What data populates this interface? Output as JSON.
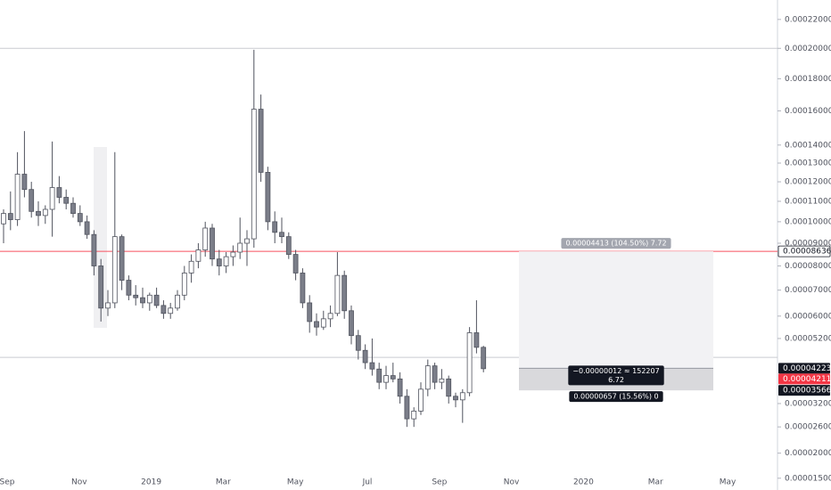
{
  "chart_data": {
    "type": "candlestick",
    "yscale": "sqrt",
    "ylim": [
      1.29e-05,
      0.000234
    ],
    "yticks": [
      {
        "value": 0.00022,
        "label": "0.00022000"
      },
      {
        "value": 0.0002,
        "label": "0.00020000"
      },
      {
        "value": 0.00018,
        "label": "0.00018000"
      },
      {
        "value": 0.00016,
        "label": "0.00016000"
      },
      {
        "value": 0.00014,
        "label": "0.00014000"
      },
      {
        "value": 0.00013,
        "label": "0.00013000"
      },
      {
        "value": 0.00012,
        "label": "0.00012000"
      },
      {
        "value": 0.00011,
        "label": "0.00011000"
      },
      {
        "value": 0.0001,
        "label": "0.00010000"
      },
      {
        "value": 9e-05,
        "label": "0.00009000"
      },
      {
        "value": 8e-05,
        "label": "0.00008000"
      },
      {
        "value": 7e-05,
        "label": "0.00007000"
      },
      {
        "value": 6e-05,
        "label": "0.00006000"
      },
      {
        "value": 5.2e-05,
        "label": "0.00005200"
      },
      {
        "value": 3.2e-05,
        "label": "0.00003200"
      },
      {
        "value": 2.6e-05,
        "label": "0.00002600"
      },
      {
        "value": 2e-05,
        "label": "0.00002000"
      },
      {
        "value": 1.5e-05,
        "label": "0.00001500"
      }
    ],
    "x_labels": [
      "Sep",
      "Nov",
      "2019",
      "Mar",
      "May",
      "Jul",
      "Sep",
      "Nov",
      "2020",
      "Mar",
      "May"
    ],
    "open": [
      9.9e-05,
      0.000104,
      0.000101,
      0.000124,
      0.000116,
      0.000105,
      0.000103,
      0.000106,
      0.000117,
      0.000112,
      0.000109,
      0.000104,
      0.0001,
      9.4e-05,
      8e-05,
      6.3e-05,
      6.5e-05,
      9.3e-05,
      7.4e-05,
      6.8e-05,
      6.7e-05,
      6.5e-05,
      6.8e-05,
      6.4e-05,
      6.1e-05,
      6.3e-05,
      6.8e-05,
      7.7e-05,
      8.2e-05,
      8.7e-05,
      9.7e-05,
      8.3e-05,
      8e-05,
      8.4e-05,
      8.6e-05,
      9e-05,
      9.2e-05,
      0.000161,
      0.000125,
      0.0001,
      9.5e-05,
      9.3e-05,
      8.5e-05,
      7.7e-05,
      6.5e-05,
      5.8e-05,
      5.6e-05,
      5.9e-05,
      6.1e-05,
      7.6e-05,
      6.2e-05,
      5.3e-05,
      4.8e-05,
      4.4e-05,
      4.2e-05,
      3.8e-05,
      4e-05,
      3.9e-05,
      3.4e-05,
      2.8e-05,
      3e-05,
      3.6e-05,
      4.3e-05,
      3.8e-05,
      3.9e-05,
      3.4e-05,
      3.3e-05,
      3.5e-05,
      5.4e-05,
      4.9e-05
    ],
    "high": [
      0.000106,
      0.000115,
      0.000136,
      0.000148,
      0.00012,
      0.00011,
      0.000108,
      0.000142,
      0.000123,
      0.000116,
      0.000112,
      0.000108,
      0.000103,
      9.6e-05,
      8.3e-05,
      7e-05,
      0.000136,
      9.4e-05,
      7.6e-05,
      7.2e-05,
      7.1e-05,
      6.9e-05,
      7.1e-05,
      6.6e-05,
      6.5e-05,
      7e-05,
      8e-05,
      8.5e-05,
      9e-05,
      0.0001,
      9.9e-05,
      8.7e-05,
      8.6e-05,
      8.9e-05,
      0.000102,
      9.6e-05,
      0.000199,
      0.00017,
      0.000128,
      0.000105,
      0.000102,
      9.5e-05,
      8.7e-05,
      7.9e-05,
      6.8e-05,
      6.1e-05,
      6.2e-05,
      6.4e-05,
      8.6e-05,
      7.8e-05,
      6.4e-05,
      5.5e-05,
      5e-05,
      5.2e-05,
      4.4e-05,
      4.3e-05,
      4.4e-05,
      4.1e-05,
      3.6e-05,
      3.1e-05,
      3.8e-05,
      4.5e-05,
      4.4e-05,
      4.2e-05,
      4e-05,
      3.5e-05,
      3.6e-05,
      5.6e-05,
      6.6e-05,
      4.95e-05
    ],
    "low": [
      9e-05,
      9.6e-05,
      9.8e-05,
      0.000112,
      0.000102,
      9.8e-05,
      9.9e-05,
      9.3e-05,
      0.000109,
      0.000106,
      0.000102,
      9.8e-05,
      9.2e-05,
      7.6e-05,
      5.8e-05,
      6e-05,
      6.3e-05,
      7e-05,
      6.6e-05,
      6.4e-05,
      6.3e-05,
      6.2e-05,
      6.3e-05,
      5.9e-05,
      5.9e-05,
      6.2e-05,
      6.6e-05,
      7.3e-05,
      7.9e-05,
      8.4e-05,
      8e-05,
      7.6e-05,
      7.7e-05,
      8e-05,
      8.3e-05,
      8e-05,
      8.8e-05,
      0.00012,
      9.6e-05,
      9e-05,
      9e-05,
      8.3e-05,
      7.4e-05,
      6.3e-05,
      5.4e-05,
      5.3e-05,
      5.5e-05,
      5.6e-05,
      6e-05,
      5.9e-05,
      5e-05,
      4.5e-05,
      4.2e-05,
      4e-05,
      3.6e-05,
      3.6e-05,
      3.8e-05,
      3.2e-05,
      2.6e-05,
      2.6e-05,
      2.9e-05,
      3.4e-05,
      3.6e-05,
      3.6e-05,
      3.2e-05,
      3.1e-05,
      2.7e-05,
      3.4e-05,
      4.7e-05,
      4.1e-05
    ],
    "close": [
      0.000104,
      0.000101,
      0.000124,
      0.000116,
      0.000105,
      0.000103,
      0.000106,
      0.000117,
      0.000112,
      0.000109,
      0.000104,
      0.0001,
      9.4e-05,
      8e-05,
      6.3e-05,
      6.5e-05,
      9.3e-05,
      7.4e-05,
      6.8e-05,
      6.7e-05,
      6.5e-05,
      6.8e-05,
      6.4e-05,
      6.1e-05,
      6.3e-05,
      6.8e-05,
      7.7e-05,
      8.2e-05,
      8.7e-05,
      9.7e-05,
      8.3e-05,
      8e-05,
      8.4e-05,
      8.6e-05,
      9e-05,
      9.2e-05,
      0.000161,
      0.000125,
      0.0001,
      9.5e-05,
      9.3e-05,
      8.5e-05,
      7.7e-05,
      6.5e-05,
      5.8e-05,
      5.6e-05,
      5.9e-05,
      6.1e-05,
      7.6e-05,
      6.2e-05,
      5.3e-05,
      4.8e-05,
      4.4e-05,
      4.2e-05,
      3.8e-05,
      4e-05,
      3.9e-05,
      3.4e-05,
      2.8e-05,
      3e-05,
      3.6e-05,
      4.3e-05,
      3.8e-05,
      3.9e-05,
      3.4e-05,
      3.3e-05,
      3.5e-05,
      5.4e-05,
      4.9e-05,
      4.211e-05
    ],
    "up_color": "#ffffff",
    "down_color": "#7b7e89",
    "wick_color": "#50535e",
    "horizontal_lines": [
      {
        "value": 0.0002,
        "color": "#c9cbd0"
      },
      {
        "value": 8.636e-05,
        "color": "#f7525f"
      },
      {
        "value": 4.57e-05,
        "color": "#c9cbd0"
      }
    ],
    "position": {
      "target": 8.636e-05,
      "entry": 4.223e-05,
      "stop": 3.566e-05,
      "target_text": "0.00004413 (104.50%) 7.72",
      "entry_text": [
        "−0.00000012 ≈ 152207",
        "6.72"
      ],
      "stop_text": "0.00000657 (15.56%) 0"
    },
    "price_labels": [
      {
        "value": 8.636e-05,
        "label": "0.00008636",
        "color": "#ffffff"
      },
      {
        "value": 4.223e-05,
        "label": "0.00004223",
        "color": "#131722"
      },
      {
        "value": 4.211e-05,
        "label": "0.00004211",
        "color": "#f23645"
      },
      {
        "value": 3.566e-05,
        "label": "0.00003566",
        "color": "#131722"
      }
    ]
  }
}
